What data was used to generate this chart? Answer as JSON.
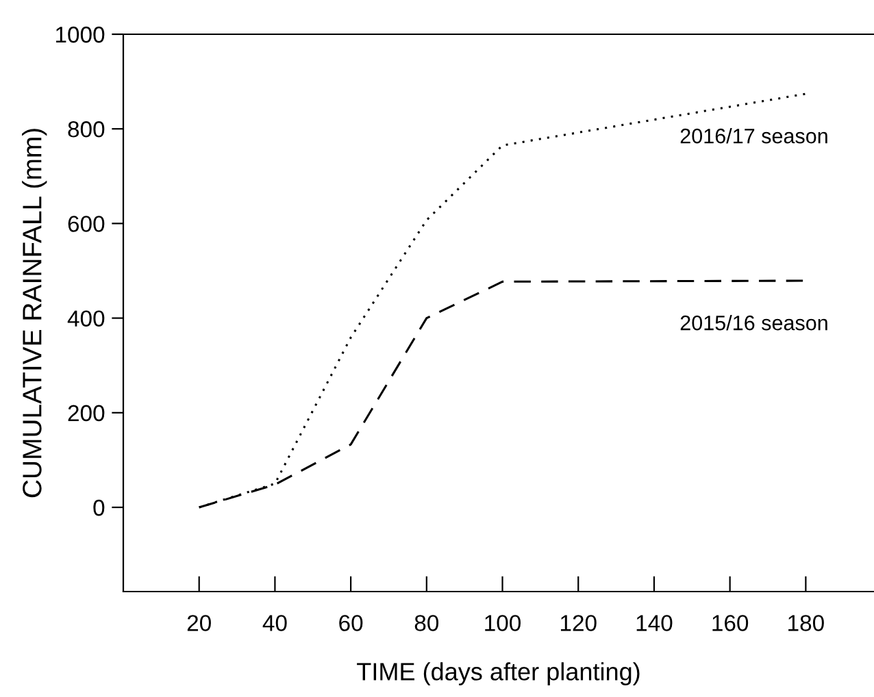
{
  "chart_data": {
    "type": "line",
    "xlabel": "TIME (days after planting)",
    "ylabel": "CUMULATIVE RAINFALL (mm)",
    "x": [
      20,
      40,
      60,
      80,
      100,
      180
    ],
    "series": [
      {
        "name": "2016/17 season",
        "color": "#000000",
        "line_style": "dotted",
        "values": [
          0,
          50,
          359,
          607,
          765,
          874
        ]
      },
      {
        "name": "2015/16 season",
        "color": "#000000",
        "line_style": "dashed",
        "values": [
          0,
          48,
          133,
          400,
          477,
          479
        ]
      }
    ],
    "xlim": [
      0,
      198
    ],
    "ylim": [
      -178,
      1000
    ],
    "xticks": [
      20,
      40,
      60,
      80,
      100,
      120,
      140,
      160,
      180
    ],
    "yticks": [
      0,
      200,
      400,
      600,
      800,
      1000
    ],
    "grid": false,
    "legend": false,
    "marker": "none"
  }
}
